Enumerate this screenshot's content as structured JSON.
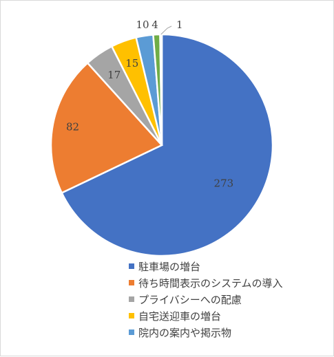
{
  "chart_data": {
    "type": "pie",
    "title": "",
    "categories": [
      "駐車場の増台",
      "待ち時間表示のシステムの導入",
      "プライバシーへの配慮",
      "自宅送迎車の増台",
      "院内の案内や掲示物",
      "",
      ""
    ],
    "values": [
      273,
      82,
      17,
      15,
      10,
      4,
      1
    ],
    "colors": [
      "#4472C4",
      "#ED7D31",
      "#A5A5A5",
      "#FFC000",
      "#5B9BD5",
      "#70AD47",
      "#264478"
    ],
    "legend_position": "bottom",
    "legend_entries": [
      "駐車場の増台",
      "待ち時間表示のシステムの導入",
      "プライバシーへの配慮",
      "自宅送迎車の増台",
      "院内の案内や掲示物"
    ]
  }
}
